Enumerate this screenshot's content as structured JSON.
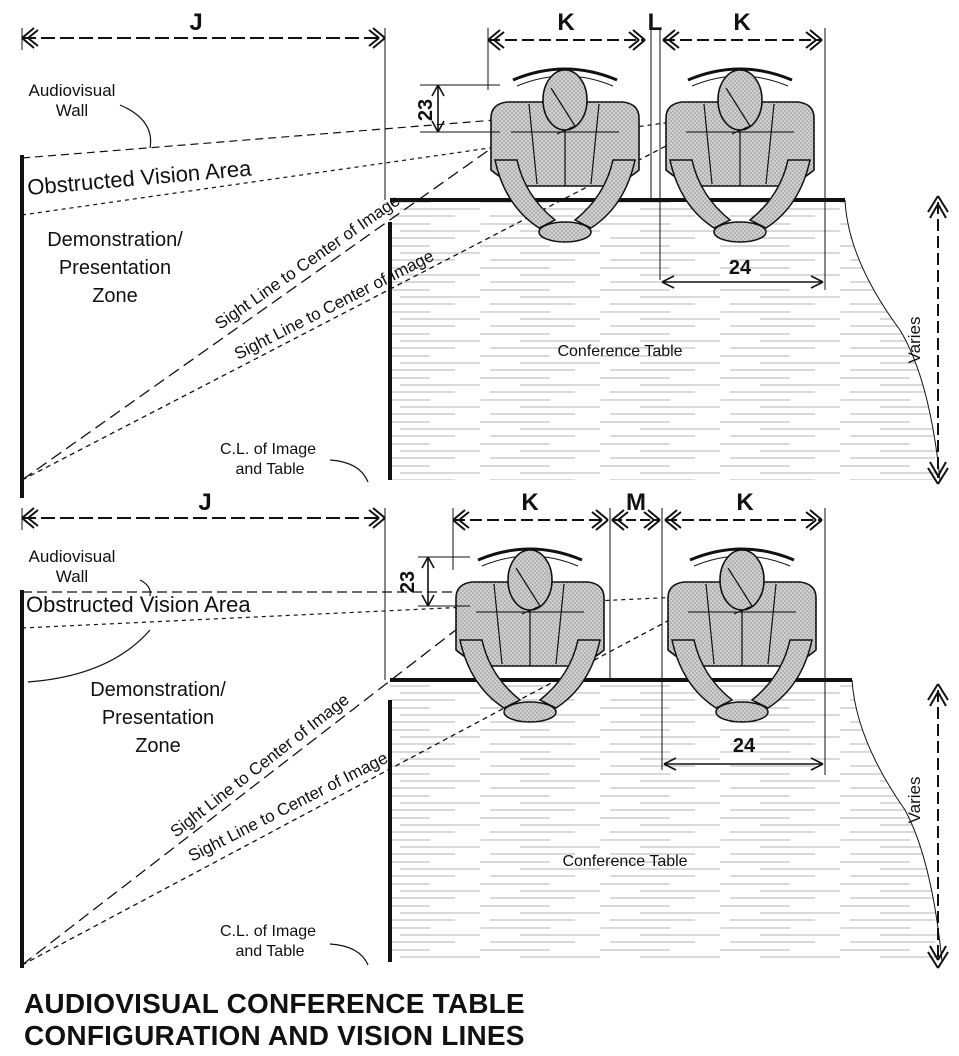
{
  "caption": {
    "line1": "AUDIOVISUAL CONFERENCE TABLE",
    "line2": "CONFIGURATION AND VISION LINES"
  },
  "top": {
    "dim_j": "J",
    "dim_k_left": "K",
    "dim_l": "L",
    "dim_k_right": "K",
    "dim_23": "23",
    "dim_24": "24",
    "varies": "Varies",
    "wall_line1": "Audiovisual",
    "wall_line2": "Wall",
    "obstructed": "Obstructed Vision Area",
    "zone_line1": "Demonstration/",
    "zone_line2": "Presentation",
    "zone_line3": "Zone",
    "sight1": "Sight Line to Center of Image",
    "sight2": "Sight Line to Center of Image",
    "table": "Conference Table",
    "cl_line1": "C.L. of Image",
    "cl_line2": "and Table"
  },
  "bottom": {
    "dim_j": "J",
    "dim_k_left": "K",
    "dim_m": "M",
    "dim_k_right": "K",
    "dim_23": "23",
    "dim_24": "24",
    "varies": "Varies",
    "wall_line1": "Audiovisual",
    "wall_line2": "Wall",
    "obstructed": "Obstructed Vision Area",
    "zone_line1": "Demonstration/",
    "zone_line2": "Presentation",
    "zone_line3": "Zone",
    "sight1": "Sight Line to Center of Image",
    "sight2": "Sight Line to Center of Image",
    "table": "Conference Table",
    "cl_line1": "C.L. of Image",
    "cl_line2": "and Table"
  }
}
